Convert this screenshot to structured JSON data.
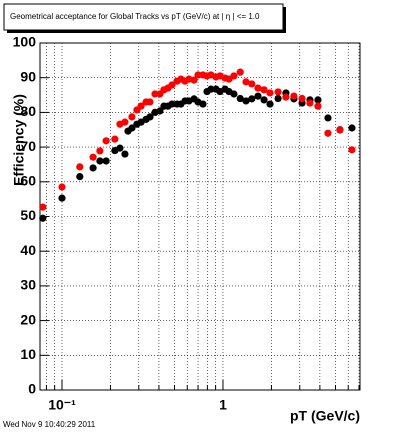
{
  "chart_data": {
    "type": "scatter",
    "title": "Geometrical acceptance for Global Tracks vs pT (GeV/c) at | η | <= 1.0",
    "x_label": "pT (GeV/c)",
    "y_label": "Efficiency (%)",
    "timestamp": "Wed Nov  9 10:40:29 2011",
    "log_x": true,
    "grid": true,
    "xlim": [
      0.073,
      7.1
    ],
    "ylim": [
      0,
      100
    ],
    "xticks": [
      {
        "value": 0.1,
        "label": "10⁻¹"
      },
      1
    ],
    "xminorticks": [
      0.08,
      0.09,
      0.2,
      0.3,
      0.4,
      0.5,
      0.6,
      0.7,
      0.8,
      0.9,
      2,
      3,
      4,
      5,
      6,
      7
    ],
    "yticks": [
      0,
      10,
      20,
      30,
      40,
      50,
      60,
      70,
      80,
      90,
      100
    ],
    "series": [
      {
        "color": "#000000",
        "x": [
          0.076,
          0.1,
          0.129,
          0.156,
          0.172,
          0.188,
          0.213,
          0.229,
          0.246,
          0.257,
          0.272,
          0.292,
          0.31,
          0.333,
          0.352,
          0.378,
          0.406,
          0.43,
          0.455,
          0.482,
          0.518,
          0.548,
          0.581,
          0.615,
          0.661,
          0.7,
          0.751,
          0.796,
          0.842,
          0.905,
          0.958,
          1.03,
          1.09,
          1.17,
          1.28,
          1.39,
          1.51,
          1.65,
          1.8,
          1.96,
          2.2,
          2.46,
          2.76,
          3.1,
          3.47,
          3.89,
          4.49,
          5.33,
          6.33
        ],
        "values": [
          49.5,
          55.3,
          61.5,
          64,
          66,
          66,
          69,
          69.7,
          68,
          74.6,
          75.5,
          76.6,
          77.2,
          78,
          78.7,
          80,
          80.4,
          81.8,
          81.8,
          82.4,
          82.4,
          82.4,
          83.3,
          83.3,
          83.9,
          83,
          82.4,
          86,
          86.7,
          86.7,
          86,
          86.7,
          86,
          85.3,
          84,
          83.3,
          83.9,
          84.7,
          83.6,
          82.4,
          84,
          85.6,
          83.9,
          82.7,
          83.6,
          83.6,
          78.4,
          75,
          75.5
        ]
      },
      {
        "color": "#ff0000",
        "x": [
          0.076,
          0.1,
          0.129,
          0.156,
          0.172,
          0.188,
          0.213,
          0.229,
          0.246,
          0.272,
          0.292,
          0.31,
          0.333,
          0.352,
          0.378,
          0.406,
          0.43,
          0.455,
          0.482,
          0.518,
          0.548,
          0.581,
          0.615,
          0.661,
          0.7,
          0.751,
          0.796,
          0.842,
          0.905,
          0.958,
          1.03,
          1.09,
          1.17,
          1.28,
          1.39,
          1.51,
          1.65,
          1.8,
          1.96,
          2.2,
          2.46,
          2.76,
          3.1,
          3.47,
          3.89,
          4.49,
          5.33,
          6.33
        ],
        "values": [
          52.7,
          58.5,
          64.3,
          67.1,
          68.9,
          71.8,
          72.3,
          76.6,
          77.2,
          78.7,
          80.7,
          81.8,
          83,
          83,
          85.3,
          85.3,
          86.5,
          87,
          87.9,
          89,
          89.6,
          89,
          89.6,
          89.3,
          90.8,
          90.8,
          90.5,
          90.8,
          90.2,
          90.5,
          89.9,
          89.6,
          90.5,
          91.6,
          88.8,
          88.2,
          87,
          86.5,
          85.6,
          85.9,
          84.4,
          84.7,
          84,
          82.7,
          81.8,
          74,
          74.9,
          69.2
        ]
      }
    ]
  }
}
